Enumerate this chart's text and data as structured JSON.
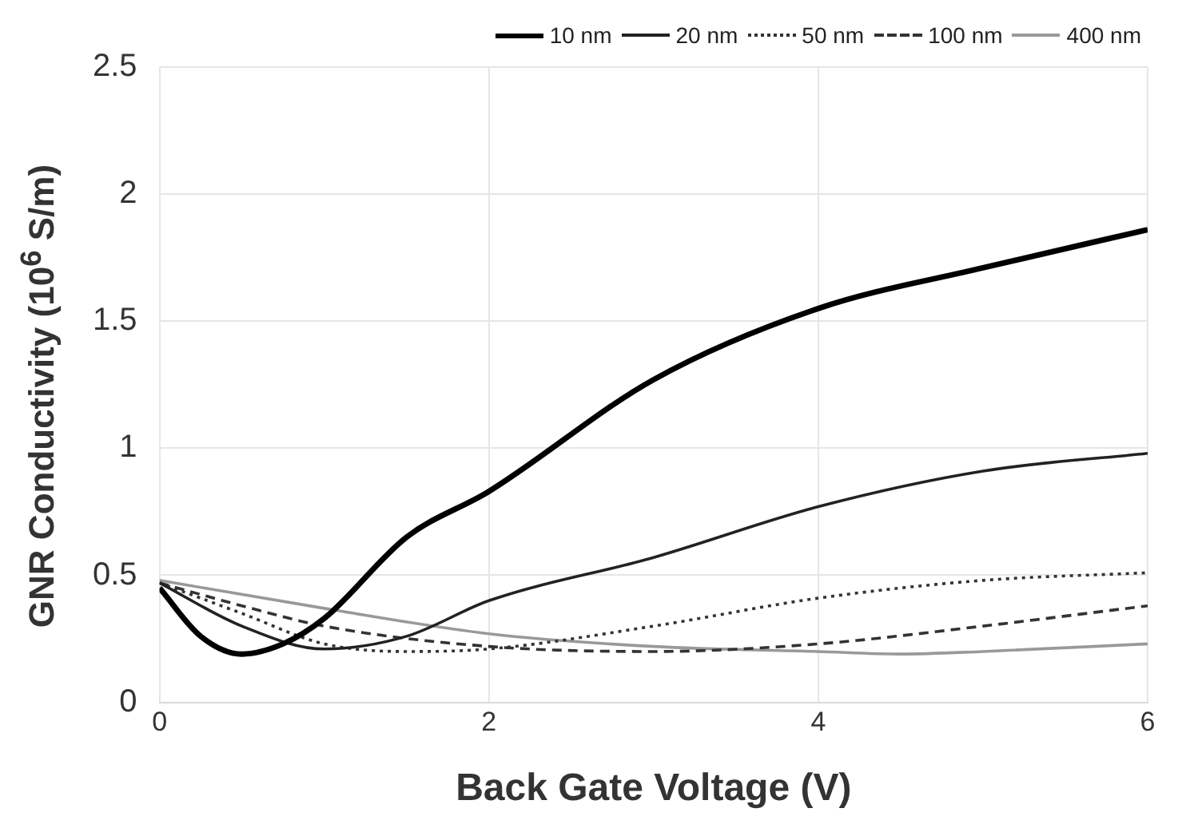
{
  "chart_data": {
    "type": "line",
    "xlabel": "Back Gate Voltage (V)",
    "ylabel": "GNR Conductivity (10$^{6}$ S/m)",
    "xlim": [
      0,
      6
    ],
    "xticks": [
      0,
      2,
      4,
      6
    ],
    "ylim": [
      0,
      2.5
    ],
    "yticks": [
      0,
      0.5,
      1,
      1.5,
      2,
      2.5
    ],
    "grid": true,
    "legend": "top right",
    "marker": "none",
    "series": [
      {
        "name": "10 nm",
        "color": "#000000",
        "line_style": "solid",
        "x": [
          0,
          0.25,
          0.5,
          0.75,
          1,
          1.5,
          2,
          3,
          4,
          5,
          6
        ],
        "values": [
          0.45,
          0.26,
          0.19,
          0.23,
          0.33,
          0.65,
          0.83,
          1.27,
          1.55,
          1.71,
          1.86
        ]
      },
      {
        "name": "20 nm",
        "color": "#222222",
        "line_style": "solid",
        "x": [
          0,
          0.5,
          1,
          1.5,
          2,
          3,
          4,
          5,
          6
        ],
        "values": [
          0.47,
          0.3,
          0.21,
          0.26,
          0.4,
          0.57,
          0.77,
          0.91,
          0.98
        ]
      },
      {
        "name": "50 nm",
        "color": "#333333",
        "line_style": "dotted",
        "x": [
          0,
          0.5,
          1,
          1.5,
          2,
          3,
          4,
          5,
          6
        ],
        "values": [
          0.47,
          0.35,
          0.23,
          0.2,
          0.21,
          0.3,
          0.41,
          0.48,
          0.51
        ]
      },
      {
        "name": "100 nm",
        "color": "#333333",
        "line_style": "dashed",
        "x": [
          0,
          0.5,
          1,
          2,
          3,
          4,
          5,
          6
        ],
        "values": [
          0.47,
          0.38,
          0.3,
          0.22,
          0.2,
          0.23,
          0.3,
          0.38
        ]
      },
      {
        "name": "400 nm",
        "color": "#999999",
        "line_style": "solid",
        "x": [
          0,
          1,
          2,
          3,
          4,
          4.5,
          5,
          6
        ],
        "values": [
          0.48,
          0.37,
          0.27,
          0.22,
          0.2,
          0.19,
          0.2,
          0.23
        ]
      }
    ]
  }
}
